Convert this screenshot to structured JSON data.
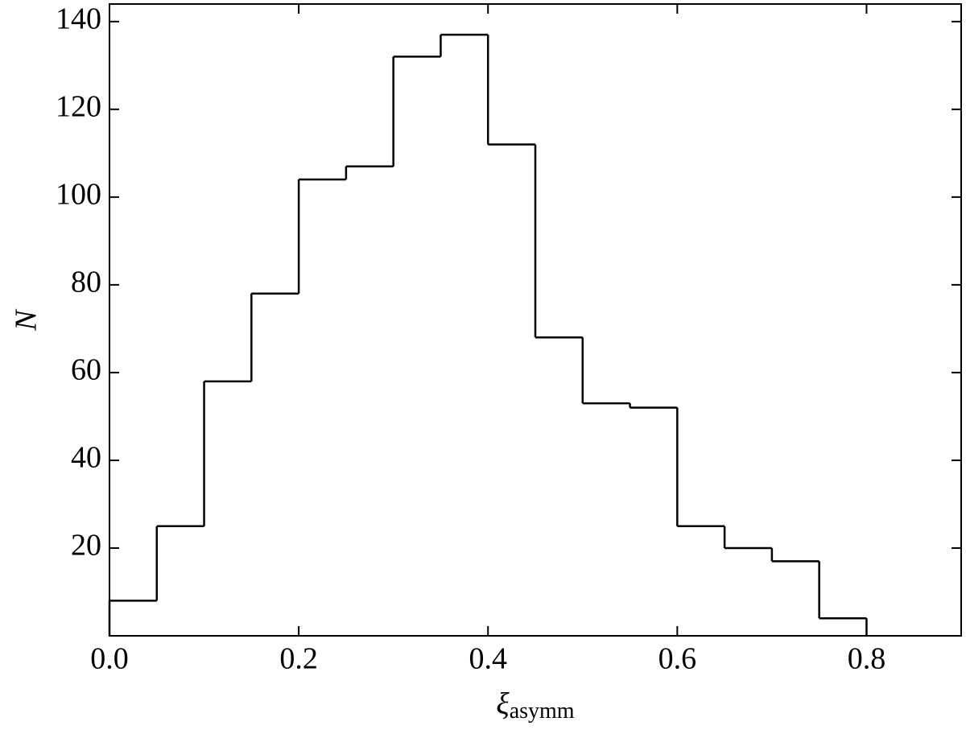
{
  "chart_data": {
    "type": "histogram",
    "ylabel": "N",
    "xlabel": {
      "symbol": "ξ",
      "subscript": "asymm"
    },
    "bins": [
      0,
      0.05,
      0.1,
      0.15,
      0.2,
      0.25,
      0.3,
      0.35,
      0.4,
      0.45,
      0.5,
      0.55,
      0.6,
      0.65,
      0.7,
      0.75,
      0.8
    ],
    "values": [
      8,
      25,
      58,
      78,
      104,
      107,
      132,
      137,
      112,
      68,
      53,
      52,
      25,
      20,
      17,
      4
    ],
    "color": "#000000",
    "histtype": "step",
    "xlim": [
      0,
      0.9
    ],
    "ylim": [
      0,
      144
    ],
    "xticks": [
      {
        "value": 0,
        "label": "0.0"
      },
      0.2,
      0.4,
      0.6,
      0.8
    ],
    "yticks": [
      20,
      40,
      60,
      80,
      100,
      120,
      140
    ]
  }
}
